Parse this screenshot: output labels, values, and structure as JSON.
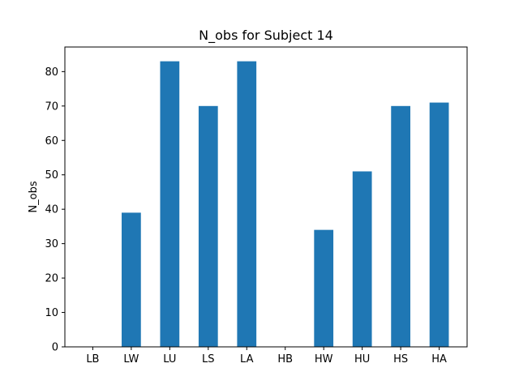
{
  "chart_data": {
    "type": "bar",
    "title": "N_obs for Subject 14",
    "xlabel": "",
    "ylabel": "N_obs",
    "categories": [
      "LB",
      "LW",
      "LU",
      "LS",
      "LA",
      "HB",
      "HW",
      "HU",
      "HS",
      "HA"
    ],
    "values": [
      0,
      39,
      83,
      70,
      83,
      0,
      34,
      51,
      70,
      71
    ],
    "ylim": [
      0,
      87.15
    ],
    "yticks": [
      0,
      10,
      20,
      30,
      40,
      50,
      60,
      70,
      80
    ],
    "grid": false,
    "legend": "none",
    "bar_color": "#1f77b4"
  }
}
